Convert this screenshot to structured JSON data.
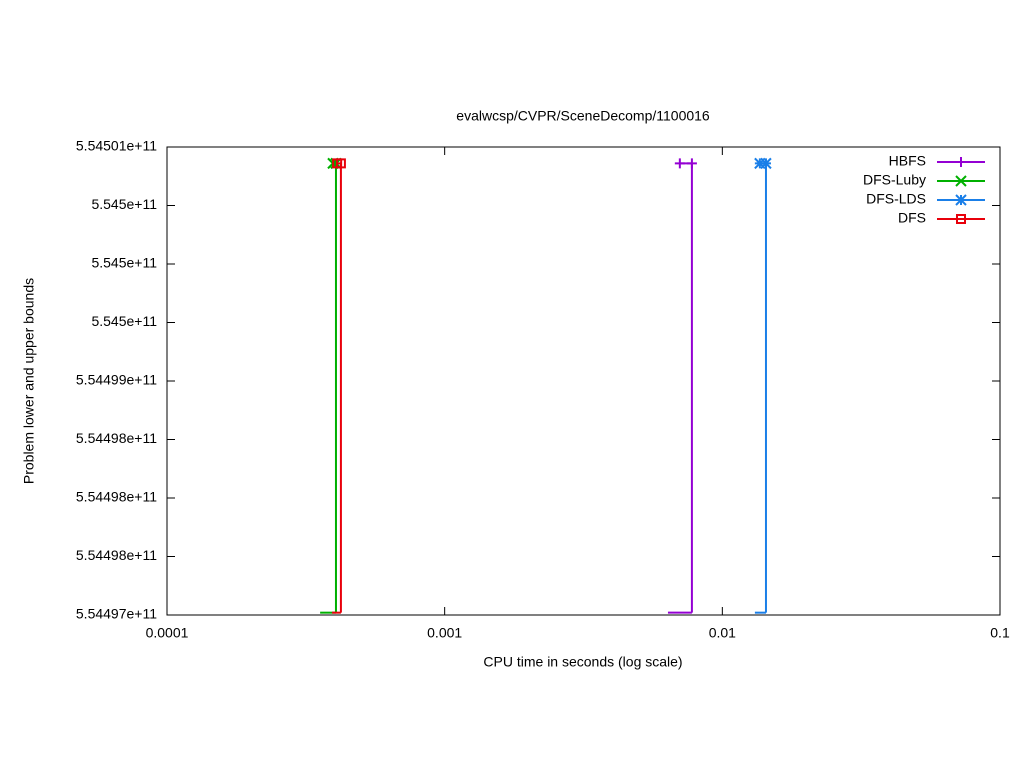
{
  "chart_data": {
    "type": "bounds-steps",
    "title": "evalwcsp/CVPR/SceneDecomp/1100016",
    "x_label": "CPU time in seconds (log scale)",
    "y_label": "Problem lower and upper bounds",
    "x_log": true,
    "xlim": [
      0.0001,
      0.1
    ],
    "xticks": [
      0.0001,
      0.001,
      0.01,
      0.1
    ],
    "ylim": [
      554497000000,
      554501000000
    ],
    "yticks": [
      {
        "value": 554497000000,
        "label": "5.54497e+11"
      },
      {
        "value": 554497500000,
        "label": "5.54498e+11"
      },
      {
        "value": 554498000000,
        "label": "5.54498e+11"
      },
      {
        "value": 554498500000,
        "label": "5.54498e+11"
      },
      {
        "value": 554499000000,
        "label": "5.54499e+11"
      },
      {
        "value": 554499500000,
        "label": "5.545e+11"
      },
      {
        "value": 554500000000,
        "label": "5.545e+11"
      },
      {
        "value": 554500500000,
        "label": "5.545e+11"
      },
      {
        "value": 554501000000,
        "label": "5.54501e+11"
      }
    ],
    "legend": "top-right",
    "series": [
      {
        "name": "HBFS",
        "color": "#9400d3",
        "marker": "plus",
        "upper_x": [
          0.00703,
          0.00777
        ],
        "upper_values": [
          554500860000,
          554500860000
        ],
        "lower_x": [
          0.00637,
          0.00777
        ],
        "lower_values": [
          554497020000,
          554497020000
        ]
      },
      {
        "name": "DFS-Luby",
        "color": "#00b000",
        "marker": "cross",
        "upper_x": [
          0.000396,
          0.000406
        ],
        "upper_values": [
          554500860000,
          554500860000
        ],
        "lower_x": [
          0.000356,
          0.000406
        ],
        "lower_values": [
          554497020000,
          554497020000
        ]
      },
      {
        "name": "DFS-LDS",
        "color": "#1a7fe8",
        "marker": "star",
        "upper_x": [
          0.01365,
          0.01436
        ],
        "upper_values": [
          554500860000,
          554500860000
        ],
        "lower_x": [
          0.0131,
          0.01436
        ],
        "lower_values": [
          554497020000,
          554497020000
        ]
      },
      {
        "name": "DFS",
        "color": "#e8000b",
        "marker": "square",
        "upper_x": [
          0.00041,
          0.000423
        ],
        "upper_values": [
          554500860000,
          554500860000
        ],
        "lower_x": [
          0.000393,
          0.000423
        ],
        "lower_values": [
          554497020000,
          554497020000
        ]
      }
    ]
  }
}
